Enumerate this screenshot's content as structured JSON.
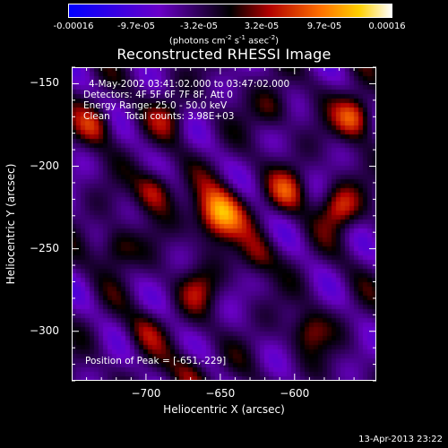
{
  "chart_data": {
    "type": "heatmap",
    "title": "Reconstructed RHESSI Image",
    "xlabel": "Heliocentric X (arcsec)",
    "ylabel": "Heliocentric Y (arcsec)",
    "xlim": [
      -750,
      -545
    ],
    "ylim": [
      -330,
      -140
    ],
    "x_ticks": [
      -700,
      -650,
      -600
    ],
    "y_ticks": [
      -300,
      -250,
      -200,
      -150
    ],
    "colorbar": {
      "ticks": [
        "-0.00016",
        "-9.7e-05",
        "-3.2e-05",
        "3.2e-05",
        "9.7e-05",
        "0.00016"
      ],
      "range": [
        -0.00016,
        0.00016
      ],
      "units_text": "(photons cm",
      "units_exp1": "-2",
      "units_mid": " s",
      "units_exp2": "-1",
      "units_mid2": " asec",
      "units_exp3": "-2",
      "units_end": ")"
    },
    "sources": [
      {
        "x": -651,
        "y": -229,
        "value": 0.00016
      },
      {
        "x": -560,
        "y": -170,
        "value": 0.00012
      },
      {
        "x": -735,
        "y": -175,
        "value": 8e-05
      },
      {
        "x": -695,
        "y": -215,
        "value": 9e-05
      },
      {
        "x": -720,
        "y": -250,
        "value": 7e-05
      },
      {
        "x": -605,
        "y": -215,
        "value": 8e-05
      },
      {
        "x": -570,
        "y": -225,
        "value": 0.0001
      },
      {
        "x": -665,
        "y": -275,
        "value": 6e-05
      },
      {
        "x": -625,
        "y": -255,
        "value": 6e-05
      },
      {
        "x": -590,
        "y": -300,
        "value": 7e-05
      },
      {
        "x": -700,
        "y": -300,
        "value": 5e-05
      },
      {
        "x": -670,
        "y": -325,
        "value": 6e-05
      },
      {
        "x": -615,
        "y": -165,
        "value": 5e-05
      },
      {
        "x": -685,
        "y": -170,
        "value": 5e-05
      }
    ],
    "annotations": {
      "time": "4-May-2002 03:41:02.000 to 03:47:02.000",
      "detectors": "Detectors: 4F 5F 6F 7F 8F, Att 0",
      "energy": "Energy Range: 25.0 - 50.0 keV",
      "clean": "Clean     Total counts: 3.98E+03",
      "peak": "Position of Peak = [-651,-229]"
    }
  },
  "footer": "13-Apr-2013 23:22"
}
